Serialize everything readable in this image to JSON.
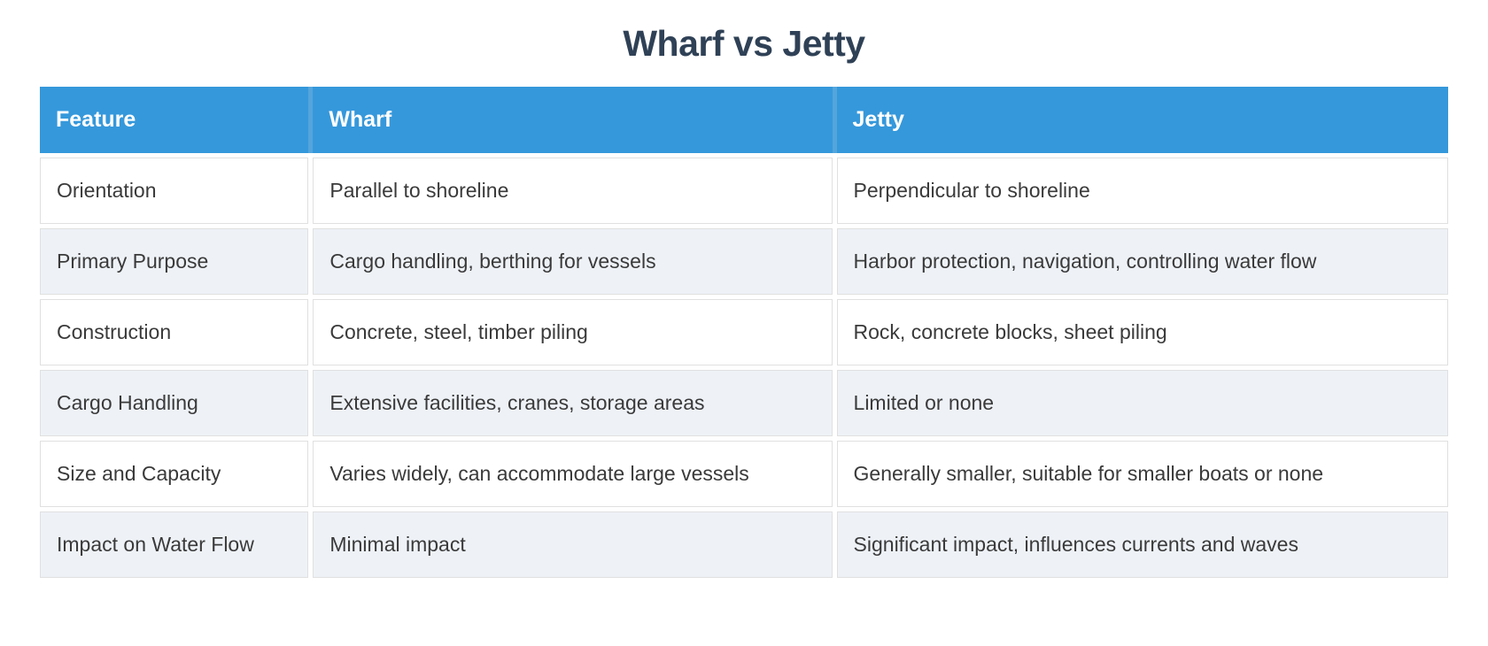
{
  "page": {
    "title": "Wharf vs Jetty"
  },
  "table": {
    "columns": [
      "Feature",
      "Wharf",
      "Jetty"
    ],
    "rows": [
      [
        "Orientation",
        "Parallel to shoreline",
        "Perpendicular to shoreline"
      ],
      [
        "Primary Purpose",
        "Cargo handling, berthing for vessels",
        "Harbor protection, navigation, controlling water flow"
      ],
      [
        "Construction",
        "Concrete, steel, timber piling",
        "Rock, concrete blocks, sheet piling"
      ],
      [
        "Cargo Handling",
        "Extensive facilities, cranes, storage areas",
        "Limited or none"
      ],
      [
        "Size and Capacity",
        "Varies widely, can accommodate large vessels",
        "Generally smaller, suitable for smaller boats or none"
      ],
      [
        "Impact on Water Flow",
        "Minimal impact",
        "Significant impact, influences currents and waves"
      ]
    ]
  },
  "chart_data": {
    "type": "table",
    "title": "Wharf vs Jetty",
    "categories": [
      "Feature",
      "Wharf",
      "Jetty"
    ],
    "rows": [
      [
        "Orientation",
        "Parallel to shoreline",
        "Perpendicular to shoreline"
      ],
      [
        "Primary Purpose",
        "Cargo handling, berthing for vessels",
        "Harbor protection, navigation, controlling water flow"
      ],
      [
        "Construction",
        "Concrete, steel, timber piling",
        "Rock, concrete blocks, sheet piling"
      ],
      [
        "Cargo Handling",
        "Extensive facilities, cranes, storage areas",
        "Limited or none"
      ],
      [
        "Size and Capacity",
        "Varies widely, can accommodate large vessels",
        "Generally smaller, suitable for smaller boats or none"
      ],
      [
        "Impact on Water Flow",
        "Minimal impact",
        "Significant impact, influences currents and waves"
      ]
    ]
  },
  "colors": {
    "header_bg": "#3598db",
    "header_divider": "#54a5dc",
    "header_text": "#ffffff",
    "alt_row_bg": "#eef2f7",
    "cell_text": "#3a3a3a",
    "cell_border": "#e0e0e0",
    "title_color": "#2f4156",
    "page_bg": "#ffffff"
  }
}
